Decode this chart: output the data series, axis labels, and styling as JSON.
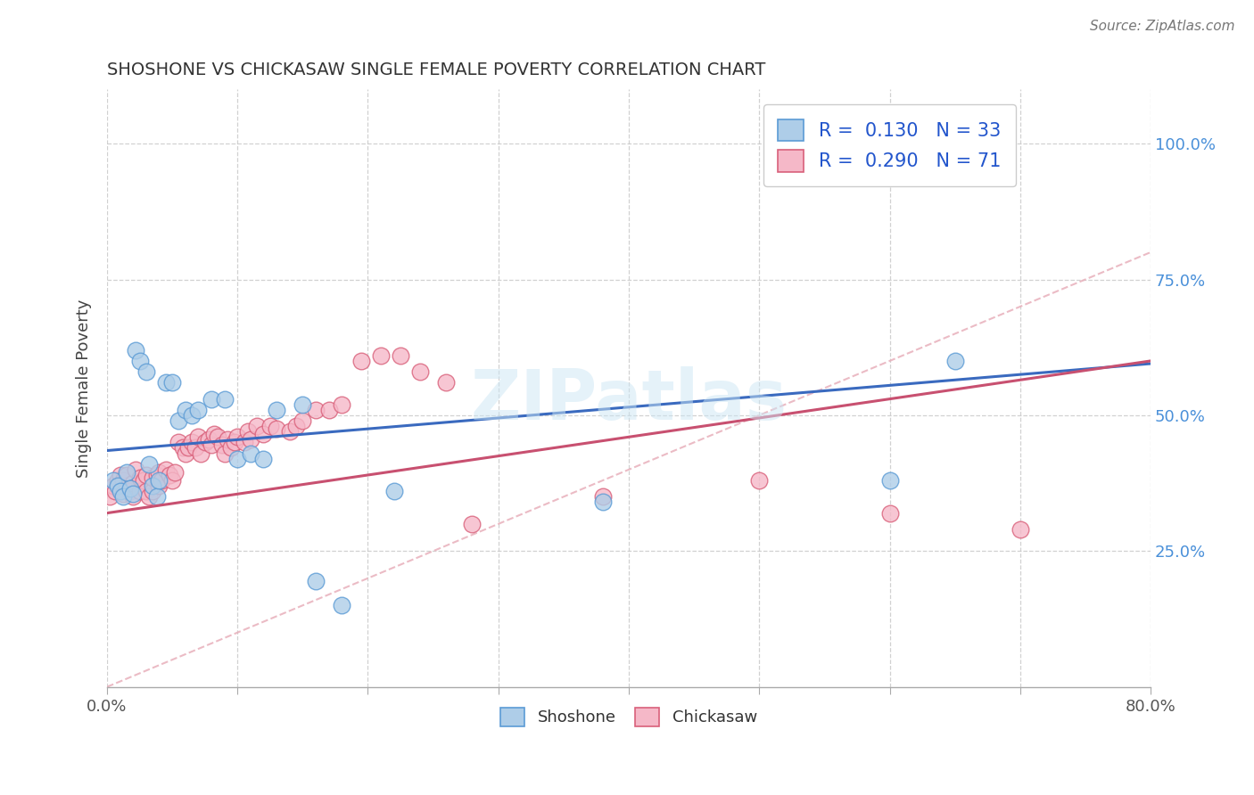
{
  "title": "SHOSHONE VS CHICKASAW SINGLE FEMALE POVERTY CORRELATION CHART",
  "source_text": "Source: ZipAtlas.com",
  "ylabel": "Single Female Poverty",
  "xlim": [
    0.0,
    0.8
  ],
  "ylim": [
    0.0,
    1.1
  ],
  "xtick_positions": [
    0.0,
    0.1,
    0.2,
    0.3,
    0.4,
    0.5,
    0.6,
    0.7,
    0.8
  ],
  "xtick_labels_show": [
    "0.0%",
    "",
    "",
    "",
    "",
    "",
    "",
    "",
    "80.0%"
  ],
  "yticks": [
    0.25,
    0.5,
    0.75,
    1.0
  ],
  "ytick_labels": [
    "25.0%",
    "50.0%",
    "75.0%",
    "100.0%"
  ],
  "shoshone_fill": "#aecde8",
  "shoshone_edge": "#5b9bd5",
  "chickasaw_fill": "#f5b8c8",
  "chickasaw_edge": "#d9607a",
  "shoshone_line_color": "#3a6abf",
  "chickasaw_line_color": "#c85070",
  "shoshone_R": 0.13,
  "shoshone_N": 33,
  "chickasaw_R": 0.29,
  "chickasaw_N": 71,
  "watermark": "ZIPatlas",
  "background_color": "#ffffff",
  "grid_color": "#cccccc",
  "shoshone_x": [
    0.005,
    0.008,
    0.01,
    0.012,
    0.015,
    0.018,
    0.02,
    0.022,
    0.025,
    0.03,
    0.032,
    0.035,
    0.038,
    0.04,
    0.045,
    0.05,
    0.055,
    0.06,
    0.065,
    0.07,
    0.08,
    0.09,
    0.1,
    0.11,
    0.12,
    0.13,
    0.15,
    0.16,
    0.18,
    0.22,
    0.38,
    0.6,
    0.65
  ],
  "shoshone_y": [
    0.38,
    0.37,
    0.36,
    0.35,
    0.395,
    0.365,
    0.355,
    0.62,
    0.6,
    0.58,
    0.41,
    0.37,
    0.35,
    0.38,
    0.56,
    0.56,
    0.49,
    0.51,
    0.5,
    0.51,
    0.53,
    0.53,
    0.42,
    0.43,
    0.42,
    0.51,
    0.52,
    0.195,
    0.15,
    0.36,
    0.34,
    0.38,
    0.6
  ],
  "chickasaw_x": [
    0.002,
    0.005,
    0.006,
    0.008,
    0.01,
    0.012,
    0.012,
    0.015,
    0.015,
    0.018,
    0.02,
    0.02,
    0.022,
    0.025,
    0.025,
    0.028,
    0.03,
    0.03,
    0.032,
    0.035,
    0.035,
    0.038,
    0.04,
    0.04,
    0.042,
    0.045,
    0.048,
    0.05,
    0.052,
    0.055,
    0.058,
    0.06,
    0.062,
    0.065,
    0.068,
    0.07,
    0.072,
    0.075,
    0.078,
    0.08,
    0.082,
    0.085,
    0.088,
    0.09,
    0.092,
    0.095,
    0.098,
    0.1,
    0.105,
    0.108,
    0.11,
    0.115,
    0.12,
    0.125,
    0.13,
    0.14,
    0.145,
    0.15,
    0.16,
    0.17,
    0.18,
    0.195,
    0.21,
    0.225,
    0.24,
    0.26,
    0.28,
    0.38,
    0.5,
    0.6,
    0.7
  ],
  "chickasaw_y": [
    0.35,
    0.37,
    0.36,
    0.38,
    0.39,
    0.355,
    0.38,
    0.37,
    0.39,
    0.36,
    0.35,
    0.375,
    0.4,
    0.36,
    0.385,
    0.38,
    0.36,
    0.39,
    0.35,
    0.36,
    0.385,
    0.39,
    0.37,
    0.395,
    0.38,
    0.4,
    0.39,
    0.38,
    0.395,
    0.45,
    0.44,
    0.43,
    0.44,
    0.45,
    0.44,
    0.46,
    0.43,
    0.45,
    0.455,
    0.445,
    0.465,
    0.46,
    0.445,
    0.43,
    0.455,
    0.44,
    0.45,
    0.46,
    0.45,
    0.47,
    0.455,
    0.48,
    0.465,
    0.48,
    0.475,
    0.47,
    0.48,
    0.49,
    0.51,
    0.51,
    0.52,
    0.6,
    0.61,
    0.61,
    0.58,
    0.56,
    0.3,
    0.35,
    0.38,
    0.32,
    0.29
  ]
}
